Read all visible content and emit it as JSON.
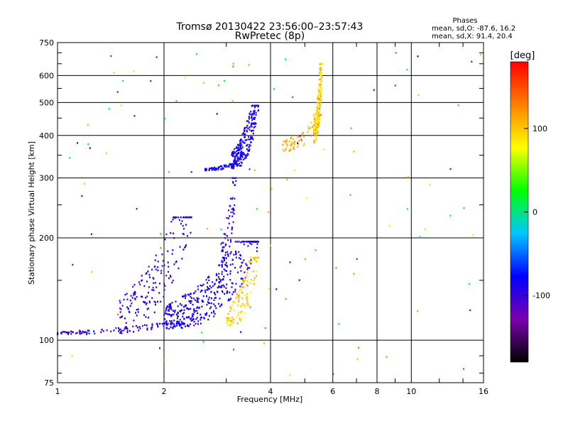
{
  "chart_data": {
    "type": "scatter",
    "title": "Tromsø 20130422 23:56:00–23:57:43",
    "subtitle": "RwPretec (8p)",
    "xlabel": "Frequency [MHz]",
    "ylabel": "Stationary phase Virtual Height [km]",
    "x_scale": "log",
    "y_scale": "log",
    "xlim": [
      1,
      16
    ],
    "ylim": [
      75,
      750
    ],
    "x_ticks": [
      "1",
      "2",
      "4",
      "6",
      "8",
      "10",
      "16"
    ],
    "y_ticks": [
      "75",
      "100",
      "200",
      "300",
      "400",
      "500",
      "600",
      "750"
    ],
    "grid": true,
    "stats": {
      "heading": "Phases",
      "line_o": "mean, sd,O: -87.6, 16.2",
      "line_x": "mean, sd,X: 91.4, 20.4"
    },
    "colorbar": {
      "label": "[deg]",
      "range": [
        -180,
        180
      ],
      "ticks": [
        "100",
        "0",
        "-100"
      ],
      "tick_values": [
        100,
        0,
        -100
      ],
      "colormap": "rainbow",
      "stops": [
        "#000000",
        "#7a00b0",
        "#0000ff",
        "#00c8ff",
        "#00ff00",
        "#ffff00",
        "#ff8000",
        "#ff0000"
      ]
    },
    "series": [
      {
        "trace": "E-layer O-mode",
        "x_range": [
          1.0,
          2.3
        ],
        "y_range": [
          104,
          112
        ],
        "phase": -95,
        "count": 110
      },
      {
        "trace": "F1 O-mode cusp",
        "x_range": [
          2.0,
          3.7
        ],
        "y_range": [
          108,
          195
        ],
        "phase": -88,
        "count": 420
      },
      {
        "trace": "F1 O-mode spread",
        "x_range": [
          1.5,
          2.4
        ],
        "y_range": [
          112,
          230
        ],
        "phase": -92,
        "count": 180
      },
      {
        "trace": "F1 X-mode",
        "x_range": [
          3.0,
          3.7
        ],
        "y_range": [
          110,
          175
        ],
        "phase": 95,
        "count": 120
      },
      {
        "trace": "F2 O-mode",
        "x_range": [
          3.1,
          3.7
        ],
        "y_range": [
          320,
          490
        ],
        "phase": -88,
        "count": 260
      },
      {
        "trace": "F2 O-mode lower",
        "x_range": [
          2.6,
          3.2
        ],
        "y_range": [
          316,
          330
        ],
        "phase": -80,
        "count": 60
      },
      {
        "trace": "F2 X-mode",
        "x_range": [
          4.3,
          5.6
        ],
        "y_range": [
          360,
          460
        ],
        "phase": 110,
        "count": 70
      },
      {
        "trace": "F2 X-mode cusp",
        "x_range": [
          5.3,
          5.6
        ],
        "y_range": [
          380,
          650
        ],
        "phase": 95,
        "count": 180
      },
      {
        "trace": "F2 oblique",
        "x_range": [
          2.9,
          3.2
        ],
        "y_range": [
          170,
          300
        ],
        "phase": -95,
        "count": 70
      }
    ],
    "scatter_noise": {
      "count": 110
    }
  }
}
